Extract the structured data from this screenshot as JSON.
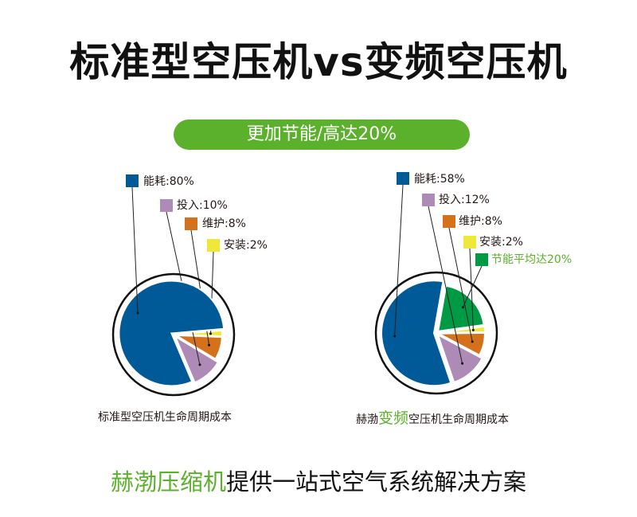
{
  "title": "标准型空压机vs变频空压机",
  "banner": "更加节能/高达20%",
  "chart_data": [
    {
      "type": "pie",
      "caption": "标准型空压机生命周期成本",
      "slices": [
        {
          "label": "能耗:80%",
          "name": "能耗",
          "value": 80,
          "color": "#005a98"
        },
        {
          "label": "投入:10%",
          "name": "投入",
          "value": 10,
          "color": "#ae8bb6"
        },
        {
          "label": "维护:8%",
          "name": "维护",
          "value": 8,
          "color": "#d5711b"
        },
        {
          "label": "安装:2%",
          "name": "安装",
          "value": 2,
          "color": "#efe83a"
        }
      ]
    },
    {
      "type": "pie",
      "caption_prefix": "赫渤",
      "caption_highlight": "变频",
      "caption_suffix": "空压机生命周期成本",
      "slices": [
        {
          "label": "能耗:58%",
          "name": "能耗",
          "value": 58,
          "color": "#005a98"
        },
        {
          "label": "投入:12%",
          "name": "投入",
          "value": 12,
          "color": "#ae8bb6"
        },
        {
          "label": "维护:8%",
          "name": "维护",
          "value": 8,
          "color": "#d5711b"
        },
        {
          "label": "安装:2%",
          "name": "安装",
          "value": 2,
          "color": "#efe83a"
        },
        {
          "label": "节能平均达20%",
          "name": "节能",
          "value": 20,
          "color": "#009a44",
          "label_color": "#5bb02c"
        }
      ]
    }
  ],
  "footer": {
    "highlight": "赫渤压缩机",
    "text": "提供一站式空气系统解决方案"
  },
  "colors": {
    "accent_green": "#5bb02c"
  }
}
